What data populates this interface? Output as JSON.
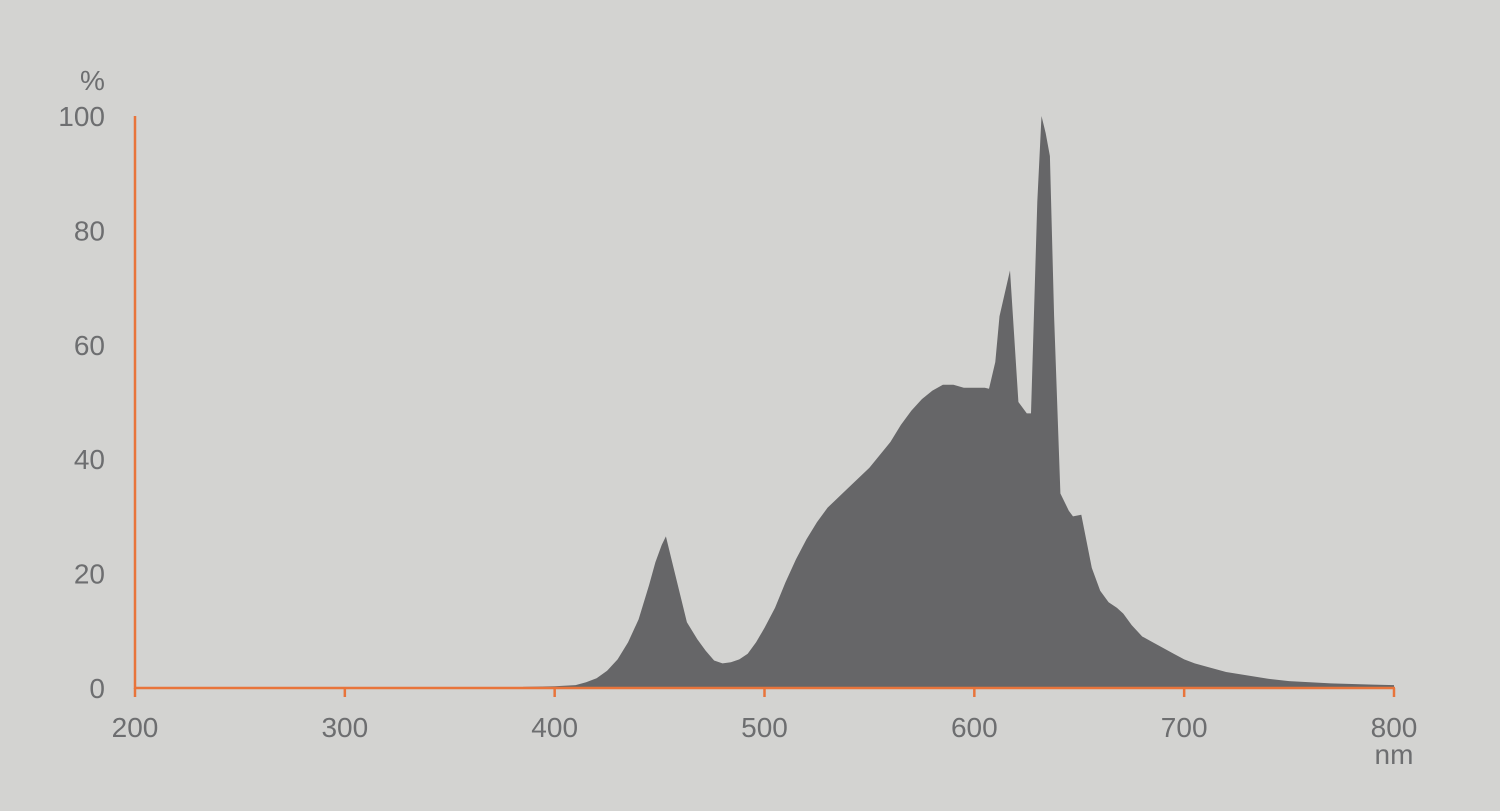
{
  "chart_data": {
    "type": "area",
    "title": "",
    "xlabel": "nm",
    "ylabel": "%",
    "xlim": [
      200,
      800
    ],
    "ylim": [
      0,
      100
    ],
    "x_ticks": [
      200,
      300,
      400,
      500,
      600,
      700,
      800
    ],
    "y_ticks": [
      0,
      20,
      40,
      60,
      80,
      100
    ],
    "grid": false,
    "colors": {
      "background": "#d3d3d1",
      "fill": "#666668",
      "axis": "#e8743b",
      "text": "#6d6e70"
    },
    "series": [
      {
        "x": [
          385,
          400,
          410,
          415,
          420,
          425,
          430,
          435,
          440,
          445,
          448,
          451,
          453,
          456,
          460,
          463,
          468,
          472,
          476,
          480,
          484,
          488,
          492,
          496,
          500,
          505,
          510,
          515,
          520,
          525,
          530,
          540,
          550,
          560,
          565,
          570,
          575,
          580,
          585,
          590,
          595,
          600,
          605,
          607,
          610,
          612,
          617,
          621,
          625,
          627,
          630,
          632,
          634,
          636,
          638,
          641,
          645,
          647,
          651,
          656,
          660,
          664,
          668,
          671,
          675,
          680,
          685,
          690,
          695,
          700,
          705,
          710,
          720,
          730,
          740,
          750,
          760,
          770,
          780,
          790,
          800
        ],
        "y": [
          0.2,
          0.3,
          0.5,
          1,
          1.7,
          3,
          5,
          8,
          12,
          18,
          22,
          25,
          26.5,
          22,
          16,
          11.5,
          8.5,
          6.5,
          4.8,
          4.3,
          4.5,
          5,
          6,
          8,
          10.5,
          14,
          18.5,
          22.5,
          26,
          29,
          31.5,
          35,
          38.5,
          43,
          46,
          48.5,
          50.5,
          52,
          53,
          53,
          52.5,
          52.5,
          52.5,
          52.3,
          57,
          65,
          73,
          50,
          48,
          48,
          85,
          100,
          97,
          93,
          65,
          34,
          31,
          30,
          30.3,
          21,
          17,
          15,
          14,
          13,
          11,
          9,
          8,
          7,
          6,
          5,
          4.3,
          3.8,
          2.8,
          2.2,
          1.6,
          1.2,
          1.0,
          0.8,
          0.7,
          0.6,
          0.5
        ]
      }
    ]
  }
}
